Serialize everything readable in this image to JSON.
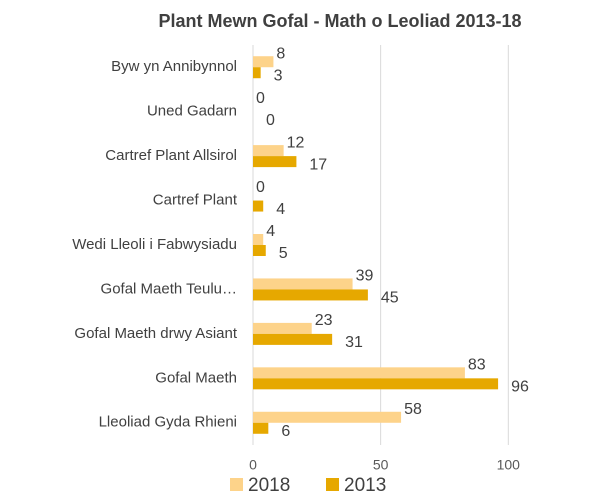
{
  "chart_data": {
    "type": "barh",
    "title": "Plant Mewn Gofal  - Math o Leoliad 2013-18",
    "categories": [
      "Byw yn Annibynnol",
      "Uned Gadarn",
      "Cartref Plant Allsirol",
      "Cartref Plant",
      "Wedi Lleoli i Fabwysiadu",
      "Gofal Maeth Teulu…",
      "Gofal Maeth drwy Asiant",
      "Gofal Maeth",
      "Lleoliad Gyda Rhieni"
    ],
    "series": [
      {
        "name": "2018",
        "color": "#fdd38a",
        "values": [
          8,
          0,
          12,
          0,
          4,
          39,
          23,
          83,
          58
        ]
      },
      {
        "name": "2013",
        "color": "#e6a800",
        "values": [
          3,
          0,
          17,
          4,
          5,
          45,
          31,
          96,
          6
        ]
      }
    ],
    "xlim": [
      0,
      132
    ],
    "xticks": [
      0,
      50,
      100
    ],
    "grid": true,
    "legend": "bottom"
  }
}
